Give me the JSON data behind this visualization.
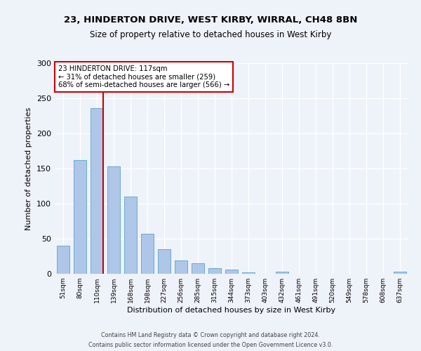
{
  "title1": "23, HINDERTON DRIVE, WEST KIRBY, WIRRAL, CH48 8BN",
  "title2": "Size of property relative to detached houses in West Kirby",
  "xlabel": "Distribution of detached houses by size in West Kirby",
  "ylabel": "Number of detached properties",
  "categories": [
    "51sqm",
    "80sqm",
    "110sqm",
    "139sqm",
    "168sqm",
    "198sqm",
    "227sqm",
    "256sqm",
    "285sqm",
    "315sqm",
    "344sqm",
    "373sqm",
    "403sqm",
    "432sqm",
    "461sqm",
    "491sqm",
    "520sqm",
    "549sqm",
    "578sqm",
    "608sqm",
    "637sqm"
  ],
  "values": [
    40,
    162,
    236,
    153,
    110,
    57,
    35,
    19,
    15,
    8,
    6,
    2,
    0,
    3,
    0,
    0,
    0,
    0,
    0,
    0,
    3
  ],
  "bar_color": "#aec6e8",
  "bar_edge_color": "#6aaad4",
  "property_bin_index": 2,
  "property_label": "23 HINDERTON DRIVE: 117sqm",
  "annotation_line1": "← 31% of detached houses are smaller (259)",
  "annotation_line2": "68% of semi-detached houses are larger (566) →",
  "line_color": "#cc0000",
  "annotation_box_color": "#cc0000",
  "ylim": [
    0,
    300
  ],
  "yticks": [
    0,
    50,
    100,
    150,
    200,
    250,
    300
  ],
  "background_color": "#eef2f9",
  "footer1": "Contains HM Land Registry data © Crown copyright and database right 2024.",
  "footer2": "Contains public sector information licensed under the Open Government Licence v3.0."
}
